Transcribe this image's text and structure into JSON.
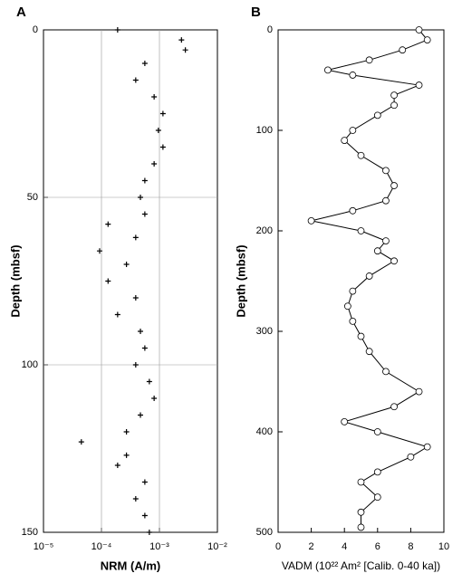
{
  "chart_data": [
    {
      "type": "scatter",
      "panel_label": "A",
      "xlabel": "NRM (A/m)",
      "ylabel": "Depth (mbsf)",
      "x": [
        0.00019,
        0.0024,
        0.0028,
        0.00056,
        0.00039,
        0.00081,
        0.00115,
        0.00096,
        0.00115,
        0.00081,
        0.00056,
        0.00047,
        0.00056,
        0.00013,
        0.00039,
        9.3e-05,
        0.00027,
        0.00013,
        0.00039,
        0.00019,
        0.00047,
        0.00056,
        0.00039,
        0.00067,
        0.00081,
        0.00047,
        0.00027,
        4.5e-05,
        0.00027,
        0.00019,
        0.00056,
        0.00039,
        0.00056,
        0.00067
      ],
      "values": [
        0,
        3,
        6,
        10,
        15,
        20,
        25,
        30,
        35,
        40,
        45,
        50,
        55,
        58,
        62,
        66,
        70,
        75,
        80,
        85,
        90,
        95,
        100,
        105,
        110,
        115,
        120,
        123,
        127,
        130,
        135,
        140,
        145,
        150
      ],
      "color": "#000000",
      "xlim": [
        1e-05,
        0.01
      ],
      "xscale": "log",
      "xticks": [
        {
          "value": 1e-05,
          "label": "10⁻⁵"
        },
        {
          "value": 0.0001,
          "label": "10⁻⁴"
        },
        {
          "value": 0.001,
          "label": "10⁻³"
        },
        {
          "value": 0.01,
          "label": "10⁻²"
        }
      ],
      "ylim": [
        0,
        150
      ],
      "yticks": [
        0,
        50,
        100,
        150
      ],
      "y_reversed": true,
      "grid": true
    },
    {
      "type": "line",
      "panel_label": "B",
      "xlabel": "VADM (10²² Am² [Calib. 0-40 ka])",
      "ylabel": "Depth (mbsf)",
      "x": [
        8.5,
        9.0,
        7.5,
        5.5,
        3.0,
        4.5,
        8.5,
        7.0,
        7.0,
        6.0,
        4.5,
        4.0,
        5.0,
        6.5,
        7.0,
        6.5,
        4.5,
        2.0,
        5.0,
        6.5,
        6.0,
        7.0,
        5.5,
        4.5,
        4.2,
        4.5,
        5.0,
        5.5,
        6.5,
        8.5,
        7.0,
        4.0,
        6.0,
        9.0,
        8.0,
        6.0,
        5.0,
        6.0,
        5.0,
        5.0
      ],
      "values": [
        0,
        10,
        20,
        30,
        40,
        45,
        55,
        65,
        75,
        85,
        100,
        110,
        125,
        140,
        155,
        170,
        180,
        190,
        200,
        210,
        220,
        230,
        245,
        260,
        275,
        290,
        305,
        320,
        340,
        360,
        375,
        390,
        400,
        415,
        425,
        440,
        450,
        465,
        480,
        495
      ],
      "color": "#000000",
      "xlim": [
        0,
        10
      ],
      "xticks": [
        0,
        2,
        4,
        6,
        8,
        10
      ],
      "ylim": [
        0,
        500
      ],
      "yticks": [
        0,
        100,
        200,
        300,
        400,
        500
      ],
      "y_reversed": true,
      "grid": false
    }
  ]
}
